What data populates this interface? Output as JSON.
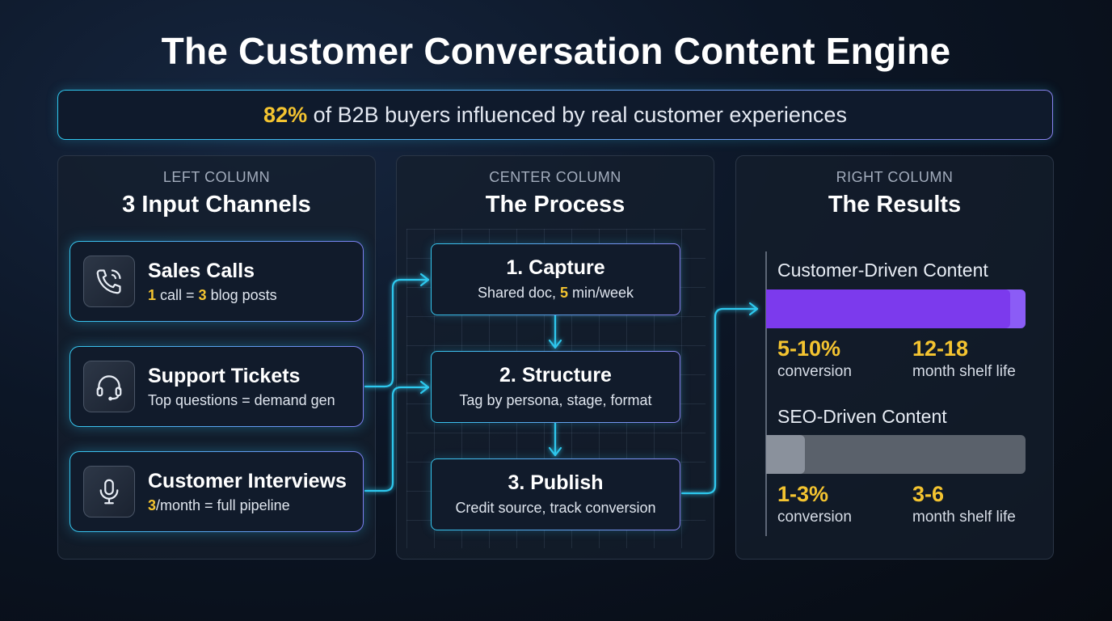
{
  "title": "The Customer Conversation Content Engine",
  "banner": {
    "stat": "82%",
    "text": " of B2B buyers influenced by real customer experiences"
  },
  "columns": {
    "left": {
      "label": "LEFT COLUMN",
      "heading": "3 Input Channels"
    },
    "center": {
      "label": "CENTER COLUMN",
      "heading": "The Process"
    },
    "right": {
      "label": "RIGHT COLUMN",
      "heading": "The Results"
    }
  },
  "channels": [
    {
      "title": "Sales Calls",
      "icon": "phone-icon",
      "sub": [
        {
          "text": "1",
          "hl": true
        },
        {
          "text": " call = ",
          "hl": false
        },
        {
          "text": "3",
          "hl": true
        },
        {
          "text": " blog posts",
          "hl": false
        }
      ]
    },
    {
      "title": "Support Tickets",
      "icon": "headset-icon",
      "sub": [
        {
          "text": "Top questions = demand gen",
          "hl": false
        }
      ]
    },
    {
      "title": "Customer Interviews",
      "icon": "microphone-icon",
      "sub": [
        {
          "text": "3",
          "hl": true
        },
        {
          "text": "/month = full pipeline",
          "hl": false
        }
      ]
    }
  ],
  "steps": [
    {
      "title": "1. Capture",
      "sub": [
        {
          "text": "Shared doc, ",
          "hl": false
        },
        {
          "text": "5",
          "hl": true
        },
        {
          "text": " min/week",
          "hl": false
        }
      ]
    },
    {
      "title": "2. Structure",
      "sub": [
        {
          "text": "Tag by persona, stage, format",
          "hl": false
        }
      ]
    },
    {
      "title": "3. Publish",
      "sub": [
        {
          "text": "Credit source, track conversion",
          "hl": false
        }
      ]
    }
  ],
  "results": [
    {
      "label": "Customer-Driven Content",
      "fill_fraction": 0.94,
      "fill_color": "#7c3aed",
      "track_color": "#8b5cf6",
      "metric1": {
        "value": "5-10%",
        "label": "conversion"
      },
      "metric2": {
        "value": "12-18",
        "label": "month shelf life"
      }
    },
    {
      "label": "SEO-Driven Content",
      "fill_fraction": 0.15,
      "fill_color": "#8a919c",
      "track_color": "#5a616b",
      "metric1": {
        "value": "1-3%",
        "label": "conversion"
      },
      "metric2": {
        "value": "3-6",
        "label": "month shelf life"
      }
    }
  ],
  "colors": {
    "accent_cyan": "#2fc8ee",
    "highlight_yellow": "#f4c430",
    "accent_violet": "#8a83f0"
  }
}
